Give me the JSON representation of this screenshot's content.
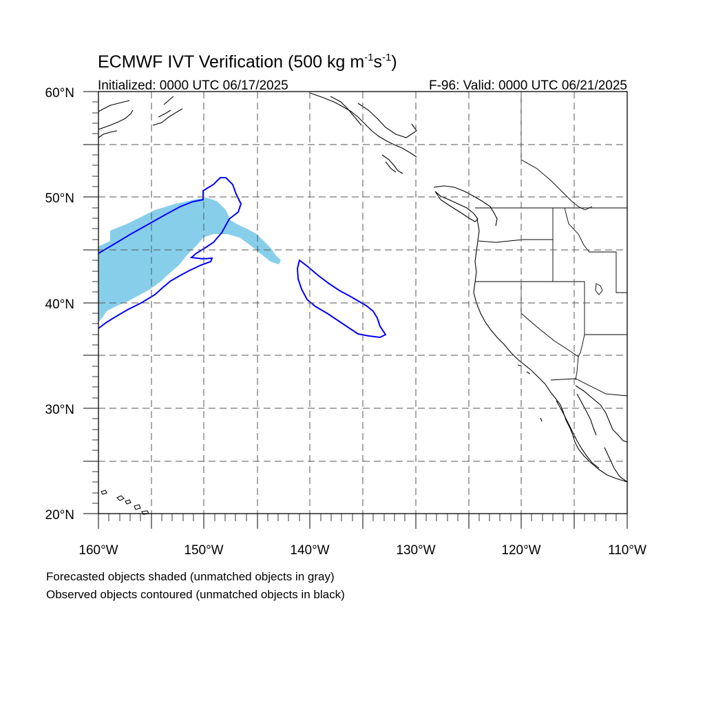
{
  "title": {
    "prefix": "ECMWF IVT Verification (500 kg m",
    "sup1": "-1",
    "mid": "s",
    "sup2": "-1",
    "suffix": ")"
  },
  "initialized": "Initialized: 0000 UTC 06/17/2025",
  "valid": "F-96: Valid: 0000 UTC 06/21/2025",
  "map": {
    "lon_range": [
      -160,
      -110
    ],
    "lat_range": [
      20,
      60
    ],
    "lon_tick_labels": [
      "160°W",
      "150°W",
      "140°W",
      "130°W",
      "120°W",
      "110°W"
    ],
    "lat_tick_labels": [
      "20°N",
      "30°N",
      "40°N",
      "50°N",
      "60°N"
    ],
    "gridlines": "dashed",
    "colors": {
      "forecast_fill": "#87CEEB",
      "observed_contour": "#0000ff",
      "coastline": "#000000",
      "grid": "#555555"
    }
  },
  "legend": {
    "line1": "Forecasted objects shaded (unmatched objects in gray)",
    "line2": "Observed objects contoured (unmatched objects in black)"
  }
}
